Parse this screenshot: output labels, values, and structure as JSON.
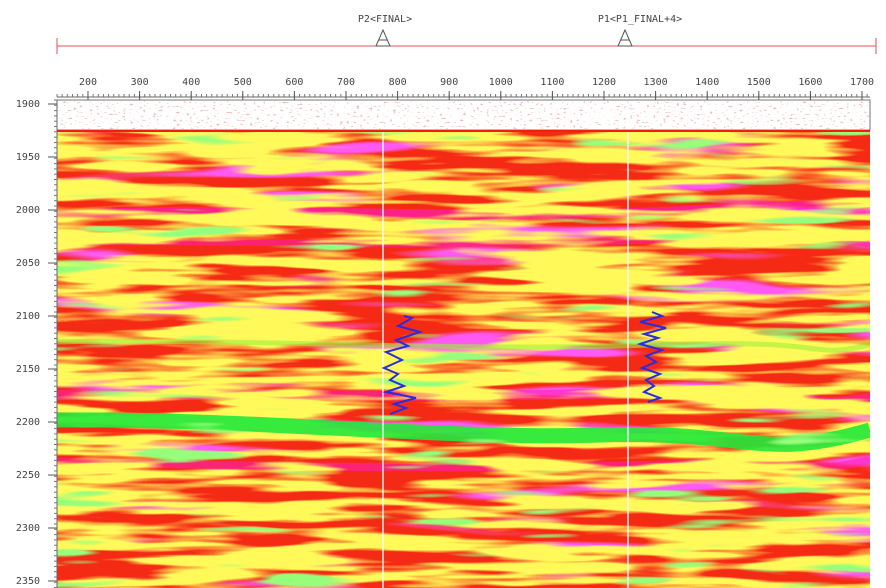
{
  "wells": [
    {
      "label": "P2<FINAL>"
    },
    {
      "label": "P1<P1_FINAL+4>"
    }
  ],
  "x_axis": {
    "ticks": [
      "200",
      "300",
      "400",
      "500",
      "600",
      "700",
      "800",
      "900",
      "1000",
      "1100",
      "1200",
      "1300",
      "1400",
      "1500",
      "1600",
      "1700"
    ]
  },
  "y_axis": {
    "ticks": [
      "1900",
      "1950",
      "2000",
      "2050",
      "2100",
      "2150",
      "2200",
      "2250",
      "2300",
      "2350"
    ]
  }
}
